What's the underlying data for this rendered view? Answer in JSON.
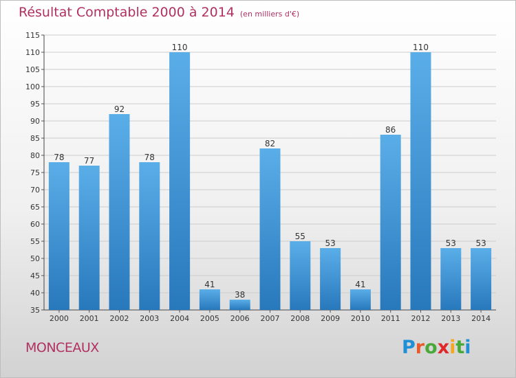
{
  "chart_data": {
    "type": "bar",
    "title": "Résultat Comptable 2000 à 2014",
    "unit_label": "(en milliers d'€)",
    "categories": [
      "2000",
      "2001",
      "2002",
      "2003",
      "2004",
      "2005",
      "2006",
      "2007",
      "2008",
      "2009",
      "2010",
      "2011",
      "2012",
      "2013",
      "2014"
    ],
    "values": [
      78,
      77,
      92,
      78,
      110,
      41,
      38,
      82,
      55,
      53,
      41,
      86,
      110,
      53,
      53
    ],
    "ylim": [
      35,
      115
    ],
    "yticks": [
      35,
      40,
      45,
      50,
      55,
      60,
      65,
      70,
      75,
      80,
      85,
      90,
      95,
      100,
      105,
      110,
      115
    ],
    "grid": true,
    "xlabel": "",
    "ylabel": ""
  },
  "colors": {
    "bar_top": "#5aaee8",
    "bar_bottom": "#2878bc",
    "title": "#b03060"
  },
  "footer": {
    "commune": "MONCEAUX",
    "brand": [
      "P",
      "r",
      "o",
      "x",
      "i",
      "t",
      "i"
    ],
    "brand_colors": [
      "#1f8fd6",
      "#e85a2a",
      "#4aa83a",
      "#e0282a",
      "#f5a623",
      "#4aa83a",
      "#1f8fd6"
    ]
  }
}
